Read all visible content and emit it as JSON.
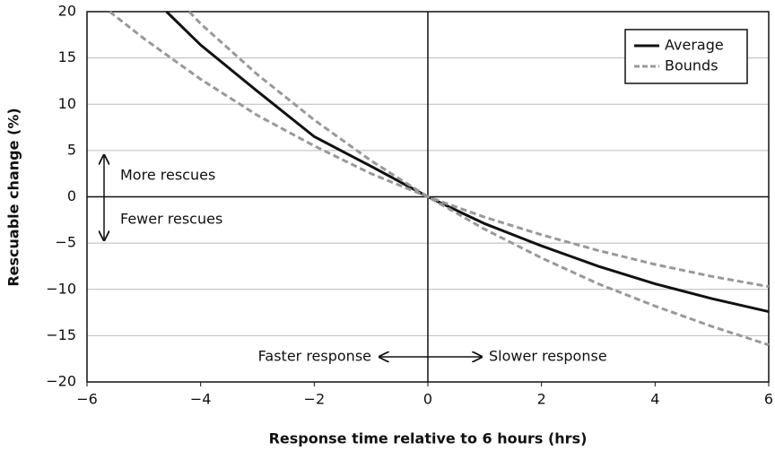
{
  "chart_data": {
    "type": "line",
    "xlabel": "Response time relative to 6 hours (hrs)",
    "ylabel": "Rescuable change (%)",
    "xlim": [
      -6,
      6
    ],
    "xticks": [
      {
        "value": -6,
        "label": "−6"
      },
      {
        "value": -4,
        "label": "−4"
      },
      {
        "value": -2,
        "label": "−2"
      },
      0,
      2,
      4,
      6
    ],
    "ylim": [
      -20,
      20
    ],
    "yticks": [
      {
        "value": -20,
        "label": "−20"
      },
      {
        "value": -15,
        "label": "−15"
      },
      {
        "value": -10,
        "label": "−10"
      },
      {
        "value": -5,
        "label": "−5"
      },
      0,
      5,
      10,
      15,
      20
    ],
    "grid": true,
    "legend": "upper right",
    "series": [
      {
        "name": "Average",
        "color": "#111111",
        "style": "solid",
        "x": [
          -4.6,
          -4,
          -3,
          -2,
          -1,
          0,
          1,
          2,
          3,
          4,
          5,
          6
        ],
        "values": [
          20,
          16.4,
          11.4,
          6.5,
          3.3,
          0,
          -2.9,
          -5.3,
          -7.5,
          -9.4,
          -11,
          -12.4
        ]
      },
      {
        "name": "Bounds",
        "color": "#999999",
        "style": "dashed",
        "x": [
          -4.2,
          -4,
          -3,
          -2,
          -1,
          0,
          1,
          2,
          3,
          4,
          5,
          6
        ],
        "values": [
          20,
          18.7,
          13.2,
          8.3,
          3.9,
          0,
          -3.5,
          -6.6,
          -9.4,
          -11.8,
          -14,
          -16
        ]
      },
      {
        "name": "Bounds",
        "color": "#999999",
        "style": "dashed",
        "x": [
          -5.6,
          -5,
          -4,
          -3,
          -2,
          -1,
          0,
          1,
          2,
          3,
          4,
          5,
          6
        ],
        "values": [
          20,
          17.1,
          12.7,
          8.8,
          5.5,
          2.5,
          0,
          -2.2,
          -4.1,
          -5.8,
          -7.3,
          -8.6,
          -9.7
        ]
      }
    ],
    "annotations": [
      "More rescues",
      "Fewer rescues",
      "Faster response",
      "Slower response"
    ]
  }
}
